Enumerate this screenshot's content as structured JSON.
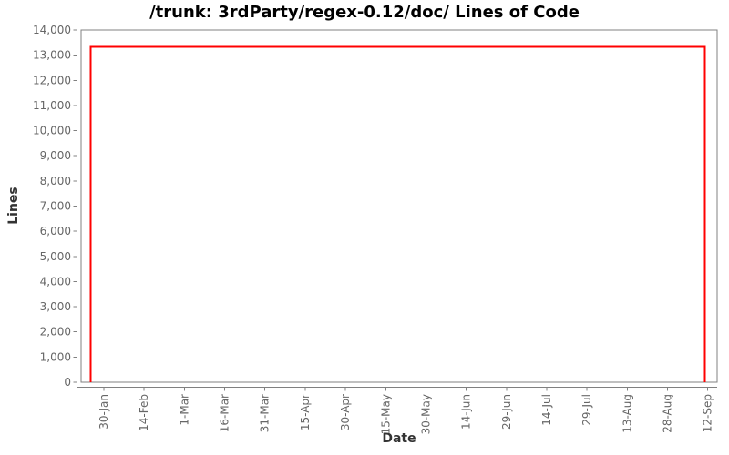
{
  "chart_data": {
    "type": "line",
    "style": "step-line (StatSVN / JFreeChart lines-of-code chart)",
    "title": "/trunk: 3rdParty/regex-0.12/doc/ Lines of Code",
    "xlabel": "Date",
    "ylabel": "Lines",
    "grid": false,
    "legend": "none",
    "series": [
      {
        "name": "Lines of Code",
        "color": "#ff0000",
        "points": [
          {
            "date": "25-Jan",
            "day": -5,
            "value": 0
          },
          {
            "date": "25-Jan",
            "day": -5,
            "value": 13330
          },
          {
            "date": "11-Sep",
            "day": 224,
            "value": 13330
          },
          {
            "date": "11-Sep",
            "day": 224,
            "value": 0
          }
        ]
      }
    ],
    "x_axis": {
      "label": "Date",
      "range_days": [
        -8.5,
        228.5
      ],
      "ticks": [
        {
          "label": "30-Jan",
          "day": 0
        },
        {
          "label": "14-Feb",
          "day": 15
        },
        {
          "label": "1-Mar",
          "day": 30
        },
        {
          "label": "16-Mar",
          "day": 45
        },
        {
          "label": "31-Mar",
          "day": 60
        },
        {
          "label": "15-Apr",
          "day": 75
        },
        {
          "label": "30-Apr",
          "day": 90
        },
        {
          "label": "15-May",
          "day": 105
        },
        {
          "label": "30-May",
          "day": 120
        },
        {
          "label": "14-Jun",
          "day": 135
        },
        {
          "label": "29-Jun",
          "day": 150
        },
        {
          "label": "14-Jul",
          "day": 165
        },
        {
          "label": "29-Jul",
          "day": 180
        },
        {
          "label": "13-Aug",
          "day": 195
        },
        {
          "label": "28-Aug",
          "day": 210
        },
        {
          "label": "12-Sep",
          "day": 225
        }
      ]
    },
    "y_axis": {
      "label": "Lines",
      "range": [
        0,
        14000
      ],
      "tick_step": 1000,
      "tick_labels": [
        "0",
        "1,000",
        "2,000",
        "3,000",
        "4,000",
        "5,000",
        "6,000",
        "7,000",
        "8,000",
        "9,000",
        "10,000",
        "11,000",
        "12,000",
        "13,000",
        "14,000"
      ]
    },
    "colors": {
      "series": "#ff0000",
      "frame": "#808080",
      "axis_line": "#808080",
      "tick_text": "#666666",
      "axis_label_text": "#333333",
      "title_text": "#000000",
      "background": "#ffffff"
    }
  }
}
